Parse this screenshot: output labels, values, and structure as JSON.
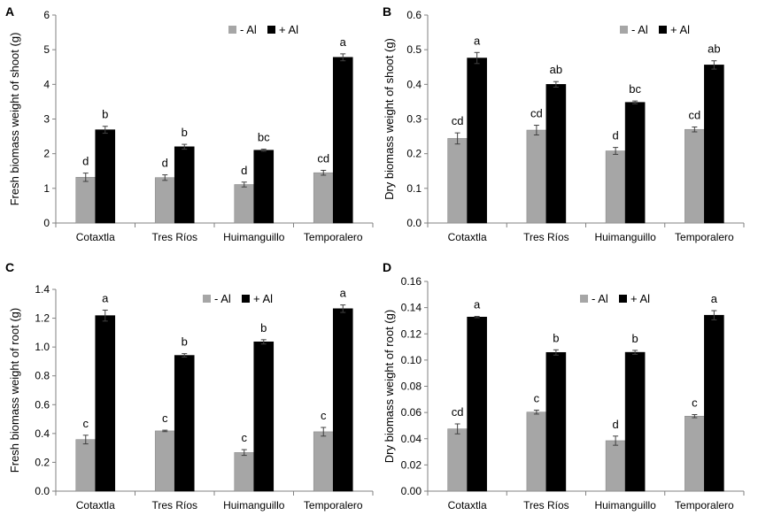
{
  "colors": {
    "minus": "#a6a6a6",
    "plus": "#000000",
    "axis": "#808080",
    "text": "#000000"
  },
  "chart_data": [
    {
      "panel_label": "A",
      "type": "bar",
      "ylabel": "Fresh biomass weight of shoot (g)",
      "ylim": [
        0,
        6
      ],
      "yticks": [
        "0",
        "1",
        "2",
        "3",
        "4",
        "5",
        "6"
      ],
      "categories": [
        "Cotaxtla",
        "Tres Ríos",
        "Huimanguillo",
        "Temporalero"
      ],
      "legend": [
        "- Al",
        "+ Al"
      ],
      "series": [
        {
          "name": "- Al",
          "values": [
            1.32,
            1.31,
            1.11,
            1.45
          ],
          "errors": [
            0.12,
            0.08,
            0.07,
            0.07
          ],
          "letters": [
            "d",
            "d",
            "d",
            "cd"
          ]
        },
        {
          "name": "+ Al",
          "values": [
            2.69,
            2.2,
            2.1,
            4.78
          ],
          "errors": [
            0.1,
            0.07,
            0.03,
            0.1
          ],
          "letters": [
            "b",
            "b",
            "bc",
            "a"
          ]
        }
      ]
    },
    {
      "panel_label": "B",
      "type": "bar",
      "ylabel": "Dry biomass weight of shoot (g)",
      "ylim": [
        0,
        0.6
      ],
      "yticks": [
        "0.0",
        "0.1",
        "0.2",
        "0.3",
        "0.4",
        "0.5",
        "0.6"
      ],
      "categories": [
        "Cotaxtla",
        "Tres Ríos",
        "Huimanguillo",
        "Temporalero"
      ],
      "legend": [
        "- Al",
        "+ Al"
      ],
      "series": [
        {
          "name": "- Al",
          "values": [
            0.244,
            0.268,
            0.208,
            0.27
          ],
          "errors": [
            0.016,
            0.014,
            0.01,
            0.007
          ],
          "letters": [
            "cd",
            "cd",
            "d",
            "cd"
          ]
        },
        {
          "name": "+ Al",
          "values": [
            0.476,
            0.4,
            0.348,
            0.456
          ],
          "errors": [
            0.016,
            0.008,
            0.004,
            0.012
          ],
          "letters": [
            "a",
            "ab",
            "bc",
            "ab"
          ]
        }
      ]
    },
    {
      "panel_label": "C",
      "type": "bar",
      "ylabel": "Fresh biomass weight of root (g)",
      "ylim": [
        0,
        1.4
      ],
      "yticks": [
        "0.0",
        "0.2",
        "0.4",
        "0.6",
        "0.8",
        "1.0",
        "1.2",
        "1.4"
      ],
      "categories": [
        "Cotaxtla",
        "Tres Ríos",
        "Huimanguillo",
        "Temporalero"
      ],
      "legend": [
        "- Al",
        "+ Al"
      ],
      "series": [
        {
          "name": "- Al",
          "values": [
            0.358,
            0.418,
            0.268,
            0.412
          ],
          "errors": [
            0.03,
            0.005,
            0.02,
            0.03
          ],
          "letters": [
            "c",
            "c",
            "c",
            "c"
          ]
        },
        {
          "name": "+ Al",
          "values": [
            1.218,
            0.942,
            1.036,
            1.266
          ],
          "errors": [
            0.038,
            0.012,
            0.015,
            0.026
          ],
          "letters": [
            "a",
            "b",
            "b",
            "a"
          ]
        }
      ]
    },
    {
      "panel_label": "D",
      "type": "bar",
      "ylabel": "Dry biomass weight of root (g)",
      "ylim": [
        0,
        0.16
      ],
      "yticks": [
        "0.00",
        "0.02",
        "0.04",
        "0.06",
        "0.08",
        "0.10",
        "0.12",
        "0.14",
        "0.16"
      ],
      "categories": [
        "Cotaxtla",
        "Tres Ríos",
        "Huimanguillo",
        "Temporalero"
      ],
      "legend": [
        "- Al",
        "+ Al"
      ],
      "series": [
        {
          "name": "- Al",
          "values": [
            0.0475,
            0.0603,
            0.0385,
            0.0572
          ],
          "errors": [
            0.0038,
            0.0015,
            0.0035,
            0.0012
          ],
          "letters": [
            "cd",
            "c",
            "d",
            "c"
          ]
        },
        {
          "name": "+ Al",
          "values": [
            0.1328,
            0.1058,
            0.1059,
            0.1342
          ],
          "errors": [
            0.0005,
            0.002,
            0.0015,
            0.0035
          ],
          "letters": [
            "a",
            "b",
            "b",
            "a"
          ]
        }
      ]
    }
  ]
}
